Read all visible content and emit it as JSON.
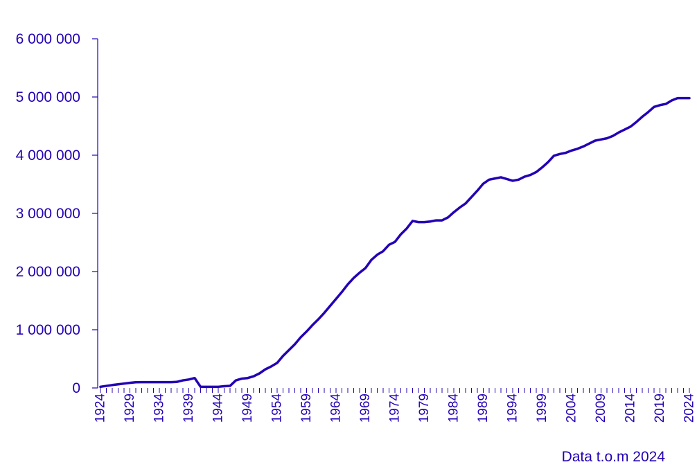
{
  "chart_data": {
    "type": "line",
    "title": "",
    "xlabel": "",
    "ylabel": "",
    "note": "Data t.o.m 2024",
    "color": "#2400b4",
    "xlim": [
      1924,
      2024
    ],
    "ylim": [
      0,
      6000000
    ],
    "yticks": [
      0,
      1000000,
      2000000,
      3000000,
      4000000,
      5000000,
      6000000
    ],
    "ytick_labels": [
      "0",
      "1 000 000",
      "2 000 000",
      "3 000 000",
      "4 000 000",
      "5 000 000",
      "6 000 000"
    ],
    "xtick_labels": [
      "1924",
      "1929",
      "1934",
      "1939",
      "1944",
      "1949",
      "1954",
      "1959",
      "1964",
      "1969",
      "1974",
      "1979",
      "1984",
      "1989",
      "1994",
      "1999",
      "2004",
      "2009",
      "2014",
      "2019",
      "2024"
    ],
    "grid": false,
    "x": [
      1924,
      1925,
      1926,
      1927,
      1928,
      1929,
      1930,
      1931,
      1932,
      1933,
      1934,
      1935,
      1936,
      1937,
      1938,
      1939,
      1940,
      1941,
      1942,
      1943,
      1944,
      1945,
      1946,
      1947,
      1948,
      1949,
      1950,
      1951,
      1952,
      1953,
      1954,
      1955,
      1956,
      1957,
      1958,
      1959,
      1960,
      1961,
      1962,
      1963,
      1964,
      1965,
      1966,
      1967,
      1968,
      1969,
      1970,
      1971,
      1972,
      1973,
      1974,
      1975,
      1976,
      1977,
      1978,
      1979,
      1980,
      1981,
      1982,
      1983,
      1984,
      1985,
      1986,
      1987,
      1988,
      1989,
      1990,
      1991,
      1992,
      1993,
      1994,
      1995,
      1996,
      1997,
      1998,
      1999,
      2000,
      2001,
      2002,
      2003,
      2004,
      2005,
      2006,
      2007,
      2008,
      2009,
      2010,
      2011,
      2012,
      2013,
      2014,
      2015,
      2016,
      2017,
      2018,
      2019,
      2020,
      2021,
      2022,
      2023,
      2024
    ],
    "series": [
      {
        "values": [
          20000,
          35000,
          50000,
          62000,
          75000,
          88000,
          98000,
          100000,
          100000,
          100000,
          100000,
          100000,
          100000,
          105000,
          130000,
          145000,
          170000,
          20000,
          20000,
          20000,
          20000,
          30000,
          35000,
          130000,
          160000,
          170000,
          200000,
          250000,
          320000,
          370000,
          430000,
          550000,
          650000,
          750000,
          870000,
          970000,
          1080000,
          1180000,
          1290000,
          1410000,
          1530000,
          1650000,
          1780000,
          1890000,
          1980000,
          2060000,
          2200000,
          2290000,
          2350000,
          2460000,
          2510000,
          2640000,
          2740000,
          2870000,
          2850000,
          2850000,
          2860000,
          2880000,
          2880000,
          2930000,
          3020000,
          3100000,
          3170000,
          3280000,
          3390000,
          3510000,
          3580000,
          3600000,
          3620000,
          3590000,
          3560000,
          3580000,
          3630000,
          3660000,
          3710000,
          3790000,
          3880000,
          3990000,
          4020000,
          4040000,
          4080000,
          4110000,
          4150000,
          4200000,
          4250000,
          4270000,
          4290000,
          4330000,
          4390000,
          4440000,
          4490000,
          4570000,
          4660000,
          4740000,
          4830000,
          4860000,
          4880000,
          4940000,
          4980000,
          4980000,
          4980000
        ]
      }
    ]
  }
}
